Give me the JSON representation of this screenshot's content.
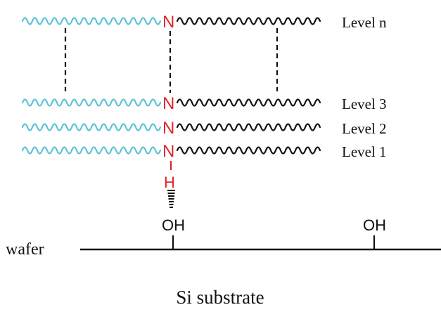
{
  "colors": {
    "cyan_chain": "#5bc2d8",
    "black_chain": "#111111",
    "nitrogen_red": "#e0262b",
    "line": "#111111"
  },
  "atoms": {
    "nitrogen": "N",
    "hydrogen": "H",
    "hydroxyl": "OH"
  },
  "levels": [
    {
      "label": "Level n"
    },
    {
      "label": "Level 3"
    },
    {
      "label": "Level 2"
    },
    {
      "label": "Level 1"
    }
  ],
  "substrate": {
    "wafer_label": "wafer",
    "caption": "Si substrate"
  }
}
